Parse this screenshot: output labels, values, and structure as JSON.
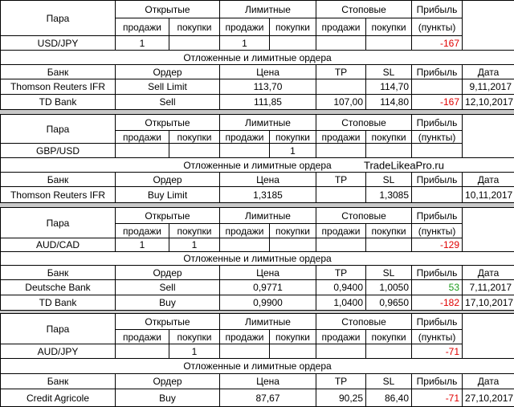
{
  "blocks": [
    {
      "header": [
        "Пара",
        "Открытые",
        "Лимитные",
        "Стоповые",
        "Прибыль"
      ],
      "subheader": [
        "продажи",
        "покупки",
        "продажи",
        "покупки",
        "продажи",
        "покупки",
        "(пункты)"
      ],
      "pair": {
        "name": "USD/JPY",
        "open_sell": "1",
        "limit_sell": "1",
        "profit": "-167"
      },
      "orders_title": "Отложенные и лимитные ордера",
      "orders_header": [
        "Банк",
        "Ордер",
        "Цена",
        "TP",
        "SL",
        "Прибыль",
        "Дата"
      ],
      "orders": [
        {
          "bank": "Thomson Reuters IFR",
          "order": "Sell Limit",
          "price": "113,70",
          "sl": "114,70",
          "date": "9,11,2017"
        },
        {
          "bank": "TD Bank",
          "order": "Sell",
          "price": "111,85",
          "tp": "107,00",
          "sl": "114,80",
          "profit": "-167",
          "date": "12,10,2017"
        }
      ]
    },
    {
      "header": [
        "Пара",
        "Открытые",
        "Лимитные",
        "Стоповые",
        "Прибыль"
      ],
      "subheader": [
        "продажи",
        "покупки",
        "продажи",
        "покупки",
        "продажи",
        "покупки",
        "(пункты)"
      ],
      "pair": {
        "name": "GBP/USD",
        "limit_buy": "1"
      },
      "orders_title": "Отложенные и лимитные ордера",
      "watermark": "TradeLikeaPro.ru",
      "orders_header": [
        "Банк",
        "Ордер",
        "Цена",
        "TP",
        "SL",
        "Прибыль",
        "Дата"
      ],
      "orders": [
        {
          "bank": "Thomson Reuters IFR",
          "order": "Buy Limit",
          "price": "1,3185",
          "sl": "1,3085",
          "date": "10,11,2017"
        }
      ]
    },
    {
      "header": [
        "Пара",
        "Открытые",
        "Лимитные",
        "Стоповые",
        "Прибыль"
      ],
      "subheader": [
        "продажи",
        "покупки",
        "продажи",
        "покупки",
        "продажи",
        "покупки",
        "(пункты)"
      ],
      "pair": {
        "name": "AUD/CAD",
        "open_sell": "1",
        "open_buy": "1",
        "profit": "-129"
      },
      "orders_title": "Отложенные и лимитные ордера",
      "orders_header": [
        "Банк",
        "Ордер",
        "Цена",
        "TP",
        "SL",
        "Прибыль",
        "Дата"
      ],
      "orders": [
        {
          "bank": "Deutsche Bank",
          "order": "Sell",
          "price": "0,9771",
          "tp": "0,9400",
          "sl": "1,0050",
          "profit": "53",
          "date": "7,11,2017"
        },
        {
          "bank": "TD Bank",
          "order": "Buy",
          "price": "0,9900",
          "tp": "1,0400",
          "sl": "0,9650",
          "profit": "-182",
          "date": "17,10,2017"
        }
      ]
    },
    {
      "header": [
        "Пара",
        "Открытые",
        "Лимитные",
        "Стоповые",
        "Прибыль"
      ],
      "subheader": [
        "продажи",
        "покупки",
        "продажи",
        "покупки",
        "продажи",
        "покупки",
        "(пункты)"
      ],
      "pair": {
        "name": "AUD/JPY",
        "open_buy": "1",
        "profit": "-71"
      },
      "orders_title": "Отложенные и лимитные ордера",
      "orders_header": [
        "Банк",
        "Ордер",
        "Цена",
        "TP",
        "SL",
        "Прибыль",
        "Дата"
      ],
      "orders": [
        {
          "bank": "Credit Agricole",
          "order": "Buy",
          "price": "87,67",
          "tp": "90,25",
          "sl": "86,40",
          "profit": "-71",
          "date": "27,10,2017"
        }
      ]
    }
  ]
}
